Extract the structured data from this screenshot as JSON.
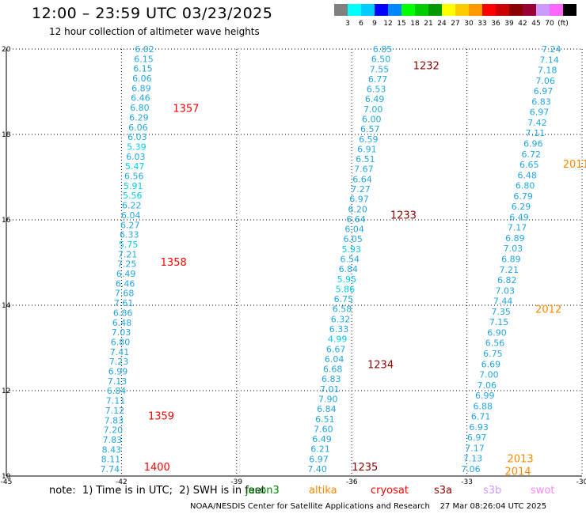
{
  "header": {
    "title": "12:00 – 23:59 UTC 03/23/2025",
    "subtitle": "12 hour collection of altimeter wave heights"
  },
  "color_scale": {
    "unit": "(ft)",
    "colors": [
      "#808080",
      "#00ffff",
      "#00ccff",
      "#0000ff",
      "#0088ff",
      "#00ff00",
      "#00cc00",
      "#009900",
      "#ffff00",
      "#ffcc00",
      "#ff9900",
      "#ff0000",
      "#cc0000",
      "#880000",
      "#990033",
      "#cc99ff",
      "#ff66ff",
      "#000000"
    ],
    "labels": [
      "3",
      "6",
      "9",
      "12",
      "15",
      "18",
      "21",
      "24",
      "27",
      "30",
      "33",
      "36",
      "39",
      "42",
      "45",
      "70"
    ]
  },
  "footer": {
    "note": "note:  1) Time is in UTC;  2) SWH is in feet",
    "missions": [
      {
        "name": "jason3",
        "color": "#008800"
      },
      {
        "name": "altika",
        "color": "#ff8800"
      },
      {
        "name": "cryosat",
        "color": "#ff0000"
      },
      {
        "name": "s3a",
        "color": "#8b0000"
      },
      {
        "name": "s3b",
        "color": "#cc99ff"
      },
      {
        "name": "swot",
        "color": "#ff88ff"
      }
    ],
    "credit": "NOAA/NESDIS Center for Satellite Applications and Research    27 Mar 08:26:04 UTC 2025"
  },
  "chart_data": {
    "type": "scatter",
    "title": "12:00 – 23:59 UTC 03/23/2025",
    "xlim": [
      -45,
      -30
    ],
    "ylim": [
      10,
      20
    ],
    "xticks": [
      "-45",
      "-42",
      "-39",
      "-36",
      "-33",
      "-30"
    ],
    "yticks": [
      "10",
      "12",
      "14",
      "16",
      "18",
      "20"
    ],
    "grid": true,
    "tracks": [
      {
        "x_top": -41.4,
        "x_bottom": -42.3,
        "values": [
          "6.02",
          "6.15",
          "6.15",
          "6.06",
          "6.89",
          "6.46",
          "6.80",
          "6.29",
          "6.06",
          "6.03",
          "5.39",
          "6.03",
          "5.47",
          "6.56",
          "5.91",
          "5.56",
          "6.22",
          "6.04",
          "6.27",
          "6.33",
          "5.75",
          "7.21",
          "7.25",
          "6.49",
          "6.46",
          "7.68",
          "7.61",
          "6.86",
          "6.48",
          "7.03",
          "6.80",
          "7.41",
          "7.23",
          "6.99",
          "7.13",
          "6.84",
          "7.11",
          "7.12",
          "7.83",
          "7.20",
          "7.83",
          "8.43",
          "8.11",
          "7.74"
        ],
        "time_labels": [
          {
            "text": "1357",
            "y": 18.6,
            "color": "#ff0000"
          },
          {
            "text": "1358",
            "y": 15.0,
            "color": "#ff0000"
          },
          {
            "text": "1359",
            "y": 11.4,
            "color": "#ff0000"
          },
          {
            "text": "1400",
            "y": 10.2,
            "color": "#ff0000"
          }
        ]
      },
      {
        "x_top": -35.2,
        "x_bottom": -36.9,
        "values": [
          "6.85",
          "6.50",
          "7.55",
          "6.77",
          "6.53",
          "6.49",
          "7.00",
          "6.00",
          "6.57",
          "6.59",
          "6.91",
          "6.51",
          "7.67",
          "6.64",
          "7.27",
          "6.97",
          "6.20",
          "6.64",
          "6.04",
          "6.05",
          "5.93",
          "6.54",
          "6.84",
          "5.95",
          "5.86",
          "6.75",
          "6.58",
          "6.32",
          "6.33",
          "4.99",
          "6.67",
          "6.04",
          "6.68",
          "6.83",
          "7.01",
          "7.90",
          "6.84",
          "6.51",
          "7.60",
          "6.49",
          "6.21",
          "6.97",
          "7.40"
        ],
        "time_labels": [
          {
            "text": "1232",
            "y": 19.6,
            "color": "#8b0000"
          },
          {
            "text": "1233",
            "y": 16.1,
            "color": "#8b0000"
          },
          {
            "text": "1234",
            "y": 12.6,
            "color": "#8b0000"
          },
          {
            "text": "1235",
            "y": 10.2,
            "color": "#8b0000"
          }
        ]
      },
      {
        "x_top": -30.8,
        "x_bottom": -32.9,
        "values": [
          "7.24",
          "7.14",
          "7.18",
          "7.06",
          "6.97",
          "6.83",
          "6.97",
          "7.42",
          "7.11",
          "6.96",
          "6.72",
          "6.65",
          "6.48",
          "6.80",
          "6.79",
          "6.29",
          "6.49",
          "7.17",
          "6.89",
          "7.03",
          "6.89",
          "7.21",
          "6.82",
          "7.03",
          "7.44",
          "7.35",
          "7.15",
          "6.90",
          "6.56",
          "6.75",
          "6.69",
          "7.00",
          "7.06",
          "6.99",
          "6.88",
          "6.71",
          "6.93",
          "6.97",
          "7.17",
          "7.13",
          "7.06"
        ],
        "time_labels": [
          {
            "text": "2011",
            "y": 17.3,
            "color": "#ff8800"
          },
          {
            "text": "2012",
            "y": 13.9,
            "color": "#ff8800"
          },
          {
            "text": "2013",
            "y": 10.4,
            "color": "#ff8800"
          },
          {
            "text": "2014",
            "y": 10.1,
            "color": "#ff8800"
          }
        ]
      }
    ]
  }
}
